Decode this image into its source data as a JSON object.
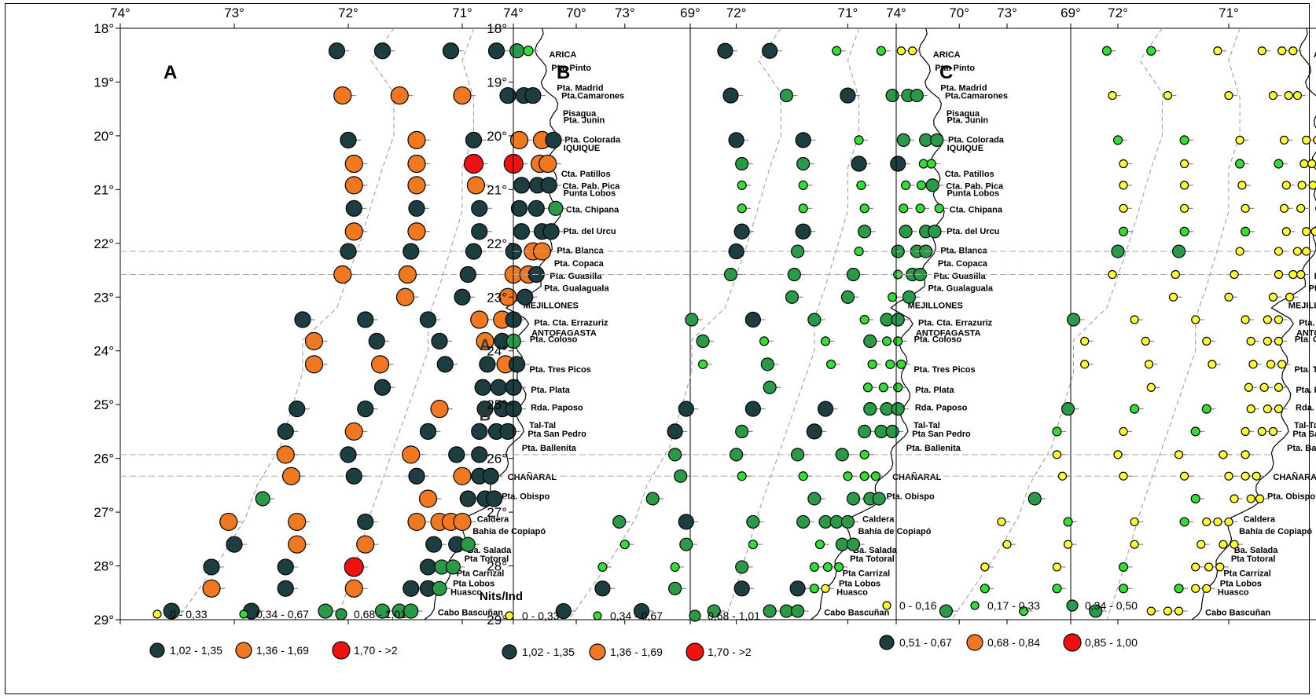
{
  "panels": [
    {
      "id": "A",
      "label": "A",
      "legend_title": "",
      "legend": [
        {
          "text": "0 - 0,33",
          "color": "#ffff33"
        },
        {
          "text": "0,34 - 0,67",
          "color": "#33dd33"
        },
        {
          "text": "0,68 - 1,01",
          "color": "#2a9a48"
        },
        {
          "text": "1,02 - 1,35",
          "color": "#1d3e40"
        },
        {
          "text": "1,36 - 1,69",
          "color": "#f07820"
        },
        {
          "text": "1,70 - >2",
          "color": "#ee1111"
        }
      ],
      "stray_labels": [
        "A",
        "B"
      ]
    },
    {
      "id": "B",
      "label": "B",
      "legend_title": "Nits/Ind",
      "legend": [
        {
          "text": "0 - 0,33",
          "color": "#ffff33"
        },
        {
          "text": "0,34 - 0,67",
          "color": "#33dd33"
        },
        {
          "text": "0,68 - 1,01",
          "color": "#2a9a48"
        },
        {
          "text": "1,02 - 1,35",
          "color": "#1d3e40"
        },
        {
          "text": "1,36 - 1,69",
          "color": "#f07820"
        },
        {
          "text": "1,70 - >2",
          "color": "#ee1111"
        }
      ],
      "stray_labels": []
    },
    {
      "id": "C",
      "label": "C",
      "legend_title": "",
      "legend": [
        {
          "text": "0 - 0,16",
          "color": "#ffff33"
        },
        {
          "text": "0,17 - 0,33",
          "color": "#33dd33"
        },
        {
          "text": "0,34 - 0,50",
          "color": "#2a9a48"
        },
        {
          "text": "0,51 - 0,67",
          "color": "#1d3e40"
        },
        {
          "text": "0,68 - 0,84",
          "color": "#f07820"
        },
        {
          "text": "0,85 - 1,00",
          "color": "#ee1111"
        }
      ],
      "stray_labels": []
    }
  ],
  "longitude_ticks": [
    "74°",
    "73°",
    "72°",
    "71°",
    "70°",
    "69°"
  ],
  "latitude_ticks": [
    "18°",
    "19°",
    "20°",
    "21°",
    "22°",
    "23°",
    "24°",
    "25°",
    "26°",
    "27°",
    "28°",
    "29°"
  ],
  "places": [
    {
      "name": "ARICA",
      "lat": 18.48
    },
    {
      "name": "Pta. Pinto",
      "lat": 18.73
    },
    {
      "name": "Pta. Madrid",
      "lat": 19.1
    },
    {
      "name": "Pta.Camarones",
      "lat": 19.25
    },
    {
      "name": "Pisagua",
      "lat": 19.58
    },
    {
      "name": "Pta. Junin",
      "lat": 19.7
    },
    {
      "name": "Pta. Colorada",
      "lat": 20.07
    },
    {
      "name": "IQUIQUE",
      "lat": 20.22
    },
    {
      "name": "Cta. Patillos",
      "lat": 20.7
    },
    {
      "name": "Cta. Pab. Pica",
      "lat": 20.93
    },
    {
      "name": "Punta Lobos",
      "lat": 21.06
    },
    {
      "name": "Cta. Chipana",
      "lat": 21.37
    },
    {
      "name": "Pta. del Urcu",
      "lat": 21.77
    },
    {
      "name": "Pta. Blanca",
      "lat": 22.13
    },
    {
      "name": "Pta. Copaca",
      "lat": 22.37
    },
    {
      "name": "Pta. Guasilla",
      "lat": 22.6
    },
    {
      "name": "Pta. Gualaguala",
      "lat": 22.83
    },
    {
      "name": "MEJILLONES",
      "lat": 23.15
    },
    {
      "name": "Pta. Cta. Errazuriz",
      "lat": 23.47
    },
    {
      "name": "ANTOFAGASTA",
      "lat": 23.66
    },
    {
      "name": "Pta. Coloso",
      "lat": 23.78
    },
    {
      "name": "Pta. Tres Picos",
      "lat": 24.34
    },
    {
      "name": "Pta. Plata",
      "lat": 24.72
    },
    {
      "name": "Rda. Paposo",
      "lat": 25.05
    },
    {
      "name": "Tal-Tal",
      "lat": 25.38
    },
    {
      "name": "Pta San Pedro",
      "lat": 25.54
    },
    {
      "name": "Pta. Ballenita",
      "lat": 25.8
    },
    {
      "name": "CHAÑARAL",
      "lat": 26.34
    },
    {
      "name": "Pta. Obispo",
      "lat": 26.7
    },
    {
      "name": "Caldera",
      "lat": 27.12
    },
    {
      "name": "Bahía de Copiapó",
      "lat": 27.35
    },
    {
      "name": "Ba. Salada",
      "lat": 27.7
    },
    {
      "name": "Pta Totoral",
      "lat": 27.86
    },
    {
      "name": "Pta Carrizal",
      "lat": 28.13
    },
    {
      "name": "Pta Lobos",
      "lat": 28.32
    },
    {
      "name": "Huasco",
      "lat": 28.48
    },
    {
      "name": "Cabo Bascuñan",
      "lat": 28.86
    }
  ],
  "rows": [
    {
      "lat": 18.42,
      "lons": [
        72.1,
        71.7,
        71.1,
        70.7,
        70.52,
        70.42
      ]
    },
    {
      "lat": 19.25,
      "lons": [
        72.05,
        71.55,
        71.0,
        70.6,
        70.46,
        70.38
      ]
    },
    {
      "lat": 20.08,
      "lons": [
        72.0,
        71.4,
        70.9,
        70.5,
        70.3,
        70.2
      ]
    },
    {
      "lat": 20.52,
      "lons": [
        71.95,
        71.4,
        70.9,
        70.55,
        70.32,
        70.25
      ]
    },
    {
      "lat": 20.92,
      "lons": [
        71.95,
        71.4,
        70.88,
        70.48,
        70.34,
        70.24
      ]
    },
    {
      "lat": 21.35,
      "lons": [
        71.95,
        71.4,
        70.85,
        70.5,
        70.35,
        70.18
      ]
    },
    {
      "lat": 21.78,
      "lons": [
        71.95,
        71.4,
        70.85,
        70.48,
        70.3,
        70.22
      ]
    },
    {
      "lat": 22.15,
      "lons": [
        72.0,
        71.45,
        70.9,
        70.55,
        70.38,
        70.3
      ]
    },
    {
      "lat": 22.58,
      "lons": [
        72.05,
        71.48,
        70.95,
        70.55,
        70.42,
        70.35
      ]
    },
    {
      "lat": 23.0,
      "lons": [
        71.5,
        71.0,
        70.6,
        70.45
      ]
    },
    {
      "lat": 23.42,
      "lons": [
        72.4,
        71.85,
        71.3,
        70.85,
        70.65,
        70.55
      ]
    },
    {
      "lat": 23.82,
      "lons": [
        72.3,
        71.75,
        71.2,
        70.8,
        70.65,
        70.55
      ]
    },
    {
      "lat": 24.25,
      "lons": [
        72.3,
        71.72,
        71.15,
        70.78,
        70.62,
        70.52
      ]
    },
    {
      "lat": 24.68,
      "lons": [
        71.7,
        70.82,
        70.68,
        70.55
      ]
    },
    {
      "lat": 25.08,
      "lons": [
        72.45,
        71.85,
        71.2,
        70.8,
        70.65,
        70.55
      ]
    },
    {
      "lat": 25.5,
      "lons": [
        72.55,
        71.95,
        71.3,
        70.85,
        70.7,
        70.6
      ]
    },
    {
      "lat": 25.93,
      "lons": [
        72.55,
        72.0,
        71.45,
        71.05,
        70.85
      ]
    },
    {
      "lat": 26.33,
      "lons": [
        72.5,
        71.95,
        71.4,
        71.0,
        70.85,
        70.75
      ]
    },
    {
      "lat": 26.75,
      "lons": [
        72.75,
        71.3,
        70.95,
        70.8,
        70.72
      ]
    },
    {
      "lat": 27.18,
      "lons": [
        73.05,
        72.45,
        71.85,
        71.4,
        71.2,
        71.1,
        71.0
      ]
    },
    {
      "lat": 27.6,
      "lons": [
        73.0,
        72.45,
        71.85,
        71.25,
        71.05,
        70.95
      ]
    },
    {
      "lat": 28.02,
      "lons": [
        73.2,
        72.55,
        71.95,
        71.3,
        71.18,
        71.08
      ]
    },
    {
      "lat": 28.42,
      "lons": [
        73.2,
        72.55,
        71.95,
        71.45,
        71.3,
        71.2
      ]
    },
    {
      "lat": 28.84,
      "lons": [
        73.55,
        72.85,
        72.2,
        71.7,
        71.55,
        71.45
      ]
    }
  ],
  "classes": {
    "A": [
      [
        3,
        3,
        3,
        3,
        2,
        1
      ],
      [
        4,
        4,
        4,
        3,
        3,
        3
      ],
      [
        3,
        4,
        3,
        4,
        4,
        3
      ],
      [
        4,
        4,
        5,
        5,
        4,
        4
      ],
      [
        4,
        4,
        4,
        3,
        3,
        3
      ],
      [
        3,
        3,
        3,
        3,
        3,
        2
      ],
      [
        4,
        4,
        3,
        3,
        3,
        3
      ],
      [
        3,
        3,
        3,
        3,
        4,
        4
      ],
      [
        4,
        4,
        3,
        4,
        4,
        3
      ],
      [
        4,
        3,
        4,
        3
      ],
      [
        3,
        3,
        3,
        4,
        4,
        3
      ],
      [
        4,
        3,
        3,
        4,
        3,
        2
      ],
      [
        4,
        4,
        3,
        3,
        4,
        3
      ],
      [
        3,
        3,
        3,
        3
      ],
      [
        3,
        3,
        4,
        3,
        3,
        3
      ],
      [
        3,
        4,
        3,
        3,
        3,
        3
      ],
      [
        4,
        3,
        4,
        3,
        3
      ],
      [
        4,
        3,
        3,
        4,
        3,
        3
      ],
      [
        2,
        4,
        3,
        3,
        3
      ],
      [
        4,
        4,
        3,
        4,
        4,
        4,
        4
      ],
      [
        3,
        4,
        4,
        3,
        3,
        2
      ],
      [
        3,
        3,
        5,
        3,
        2,
        2
      ],
      [
        4,
        3,
        4,
        3,
        3,
        2
      ],
      [
        3,
        3,
        2,
        2,
        2,
        2
      ]
    ],
    "B": [
      [
        3,
        3,
        1,
        1,
        0,
        0
      ],
      [
        3,
        2,
        3,
        2,
        2,
        2
      ],
      [
        3,
        3,
        1,
        2,
        2,
        2
      ],
      [
        2,
        2,
        3,
        3,
        1,
        1
      ],
      [
        1,
        1,
        1,
        1,
        1,
        2
      ],
      [
        1,
        1,
        1,
        1,
        1,
        1
      ],
      [
        3,
        3,
        2,
        2,
        2,
        2
      ],
      [
        3,
        2,
        1,
        2,
        2,
        2
      ],
      [
        2,
        2,
        2,
        1,
        2,
        2
      ],
      [
        2,
        2,
        1,
        2
      ],
      [
        2,
        3,
        2,
        1,
        2,
        2
      ],
      [
        2,
        1,
        1,
        2,
        1,
        1
      ],
      [
        1,
        2,
        1,
        1,
        1,
        1
      ],
      [
        2,
        1,
        1,
        1
      ],
      [
        3,
        3,
        3,
        2,
        2,
        2
      ],
      [
        3,
        2,
        3,
        2,
        2,
        2
      ],
      [
        2,
        2,
        2,
        2,
        1
      ],
      [
        2,
        1,
        1,
        1,
        1,
        1
      ],
      [
        2,
        2,
        2,
        2,
        2
      ],
      [
        2,
        3,
        2,
        2,
        2,
        2,
        2
      ],
      [
        1,
        2,
        1,
        1,
        2,
        2
      ],
      [
        1,
        1,
        2,
        1,
        1,
        1
      ],
      [
        3,
        2,
        3,
        3,
        1,
        0
      ],
      [
        3,
        3,
        2,
        2,
        2,
        2
      ]
    ],
    "C": [
      [
        1,
        1,
        0,
        0,
        0,
        0
      ],
      [
        0,
        0,
        0,
        0,
        0,
        0
      ],
      [
        1,
        1,
        0,
        0,
        0,
        0
      ],
      [
        0,
        0,
        1,
        1,
        0,
        0
      ],
      [
        0,
        0,
        0,
        0,
        0,
        0
      ],
      [
        0,
        0,
        0,
        0,
        0,
        0
      ],
      [
        1,
        1,
        1,
        0,
        0,
        0
      ],
      [
        2,
        2,
        0,
        0,
        0,
        0
      ],
      [
        0,
        0,
        0,
        0,
        0,
        0
      ],
      [
        0,
        0,
        0,
        0
      ],
      [
        2,
        0,
        0,
        0,
        0,
        0
      ],
      [
        0,
        0,
        0,
        0,
        0,
        0
      ],
      [
        0,
        0,
        0,
        0,
        0,
        0
      ],
      [
        0,
        0,
        0,
        0
      ],
      [
        2,
        1,
        1,
        0,
        0,
        0
      ],
      [
        1,
        0,
        1,
        0,
        0,
        0
      ],
      [
        0,
        0,
        0,
        0,
        0
      ],
      [
        0,
        0,
        0,
        0,
        0,
        0
      ],
      [
        2,
        1,
        0,
        0,
        0
      ],
      [
        0,
        1,
        0,
        1,
        0,
        0,
        0
      ],
      [
        0,
        0,
        0,
        0,
        0,
        0
      ],
      [
        0,
        0,
        1,
        0,
        0,
        0
      ],
      [
        1,
        1,
        1,
        1,
        0,
        0
      ],
      [
        2,
        1,
        2,
        0,
        0,
        0
      ]
    ]
  }
}
